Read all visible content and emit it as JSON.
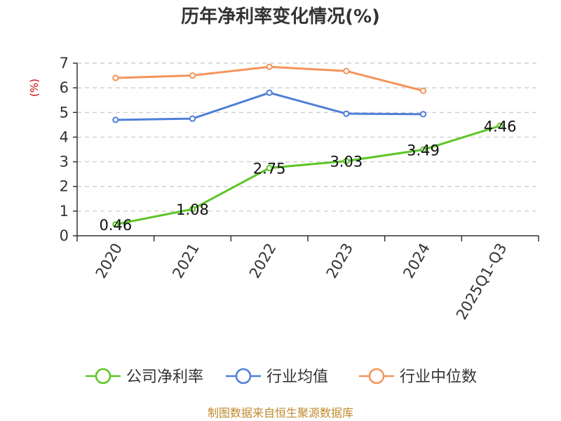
{
  "title": "历年净利率变化情况(%)",
  "source": "制图数据来自恒生聚源数据库",
  "chart_data": {
    "type": "line",
    "title": "历年净利率变化情况(%)",
    "ylabel": "(%)",
    "xlabel": "",
    "categories": [
      "2020",
      "2021",
      "2022",
      "2023",
      "2024",
      "2025Q1-Q3"
    ],
    "ylim": [
      0,
      7
    ],
    "yticks": [
      0,
      1,
      2,
      3,
      4,
      5,
      6,
      7
    ],
    "grid": "horizontal-dashed",
    "legend_position": "bottom",
    "series": [
      {
        "name": "公司净利率",
        "color": "#5cc626",
        "values": [
          0.46,
          1.08,
          2.75,
          3.03,
          3.49,
          4.46
        ],
        "labels": [
          "0.46",
          "1.08",
          "2.75",
          "3.03",
          "3.49",
          "4.46"
        ]
      },
      {
        "name": "行业均值",
        "color": "#4f7fd9",
        "values": [
          4.7,
          4.75,
          5.8,
          4.95,
          4.93,
          null
        ]
      },
      {
        "name": "行业中位数",
        "color": "#f5935a",
        "values": [
          6.4,
          6.5,
          6.85,
          6.68,
          5.88,
          null
        ]
      }
    ]
  }
}
